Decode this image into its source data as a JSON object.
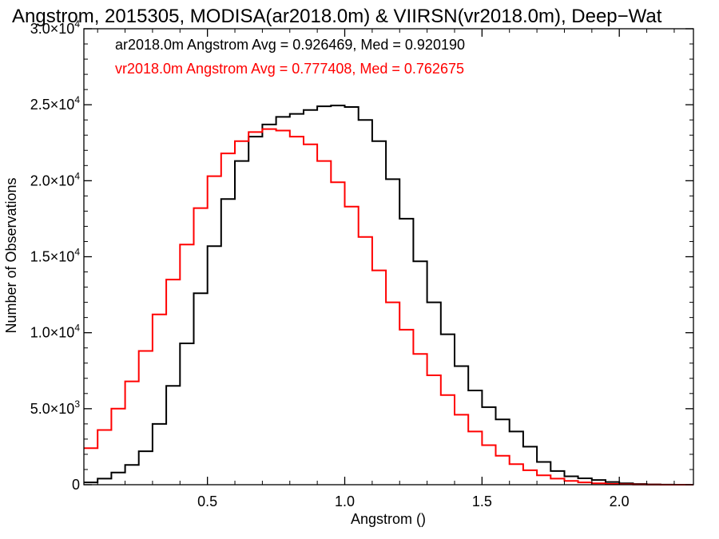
{
  "chart_data": {
    "type": "line",
    "title": "Angstrom, 2015305, MODISA(ar2018.0m) & VIIRSN(vr2018.0m), Deep−Wat",
    "xlabel": "Angstrom ()",
    "ylabel": "Number of Observations",
    "xlim": [
      0.05,
      2.27
    ],
    "ylim": [
      0,
      30000
    ],
    "grid": false,
    "x_ticks": [
      {
        "value": 0.5,
        "label": "0.5"
      },
      {
        "value": 1.0,
        "label": "1.0"
      },
      {
        "value": 1.5,
        "label": "1.5"
      },
      {
        "value": 2.0,
        "label": "2.0"
      }
    ],
    "y_ticks": [
      {
        "value": 0,
        "mant": "0",
        "exp": ""
      },
      {
        "value": 5000,
        "mant": "5.0×10",
        "exp": "3"
      },
      {
        "value": 10000,
        "mant": "1.0×10",
        "exp": "4"
      },
      {
        "value": 15000,
        "mant": "1.5×10",
        "exp": "4"
      },
      {
        "value": 20000,
        "mant": "2.0×10",
        "exp": "4"
      },
      {
        "value": 25000,
        "mant": "2.5×10",
        "exp": "4"
      },
      {
        "value": 30000,
        "mant": "3.0×10",
        "exp": "4"
      }
    ],
    "legend": {
      "placement": "top-left",
      "entries": [
        {
          "text": "ar2018.0m Angstrom Avg = 0.926469, Med = 0.920190",
          "color": "#000000"
        },
        {
          "text": "vr2018.0m Angstrom Avg = 0.777408, Med = 0.762675",
          "color": "#ff0000"
        }
      ]
    },
    "series": [
      {
        "name": "ar2018.0m",
        "color": "#000000",
        "style": "step",
        "points": [
          [
            0.05,
            150
          ],
          [
            0.1,
            400
          ],
          [
            0.15,
            800
          ],
          [
            0.2,
            1300
          ],
          [
            0.25,
            2200
          ],
          [
            0.3,
            4000
          ],
          [
            0.35,
            6500
          ],
          [
            0.4,
            9300
          ],
          [
            0.45,
            12600
          ],
          [
            0.5,
            15700
          ],
          [
            0.55,
            18800
          ],
          [
            0.6,
            21300
          ],
          [
            0.65,
            22900
          ],
          [
            0.7,
            23700
          ],
          [
            0.75,
            24200
          ],
          [
            0.8,
            24400
          ],
          [
            0.85,
            24650
          ],
          [
            0.9,
            24900
          ],
          [
            0.95,
            24950
          ],
          [
            1.0,
            24850
          ],
          [
            1.05,
            24000
          ],
          [
            1.1,
            22600
          ],
          [
            1.15,
            20100
          ],
          [
            1.2,
            17500
          ],
          [
            1.25,
            14700
          ],
          [
            1.3,
            12000
          ],
          [
            1.35,
            9900
          ],
          [
            1.4,
            7800
          ],
          [
            1.45,
            6200
          ],
          [
            1.5,
            5100
          ],
          [
            1.55,
            4300
          ],
          [
            1.6,
            3500
          ],
          [
            1.65,
            2500
          ],
          [
            1.7,
            1500
          ],
          [
            1.75,
            900
          ],
          [
            1.8,
            550
          ],
          [
            1.85,
            420
          ],
          [
            1.9,
            310
          ],
          [
            1.95,
            180
          ],
          [
            2.0,
            90
          ],
          [
            2.05,
            45
          ],
          [
            2.1,
            20
          ],
          [
            2.15,
            5
          ],
          [
            2.2,
            0
          ],
          [
            2.27,
            0
          ]
        ]
      },
      {
        "name": "vr2018.0m",
        "color": "#ff0000",
        "style": "step",
        "points": [
          [
            0.05,
            2400
          ],
          [
            0.1,
            3600
          ],
          [
            0.15,
            5000
          ],
          [
            0.2,
            6800
          ],
          [
            0.25,
            8800
          ],
          [
            0.3,
            11200
          ],
          [
            0.35,
            13500
          ],
          [
            0.4,
            15800
          ],
          [
            0.45,
            18200
          ],
          [
            0.5,
            20300
          ],
          [
            0.55,
            21800
          ],
          [
            0.6,
            22600
          ],
          [
            0.65,
            23200
          ],
          [
            0.7,
            23400
          ],
          [
            0.75,
            23300
          ],
          [
            0.8,
            22900
          ],
          [
            0.85,
            22400
          ],
          [
            0.9,
            21300
          ],
          [
            0.95,
            19900
          ],
          [
            1.0,
            18300
          ],
          [
            1.05,
            16300
          ],
          [
            1.1,
            14100
          ],
          [
            1.15,
            12000
          ],
          [
            1.2,
            10200
          ],
          [
            1.25,
            8600
          ],
          [
            1.3,
            7200
          ],
          [
            1.35,
            5900
          ],
          [
            1.4,
            4600
          ],
          [
            1.45,
            3500
          ],
          [
            1.5,
            2600
          ],
          [
            1.55,
            1900
          ],
          [
            1.6,
            1350
          ],
          [
            1.65,
            950
          ],
          [
            1.7,
            620
          ],
          [
            1.75,
            400
          ],
          [
            1.8,
            250
          ],
          [
            1.85,
            150
          ],
          [
            1.9,
            90
          ],
          [
            1.95,
            50
          ],
          [
            2.0,
            25
          ],
          [
            2.05,
            10
          ],
          [
            2.1,
            4
          ],
          [
            2.15,
            1
          ],
          [
            2.2,
            0
          ],
          [
            2.27,
            0
          ]
        ]
      }
    ]
  }
}
